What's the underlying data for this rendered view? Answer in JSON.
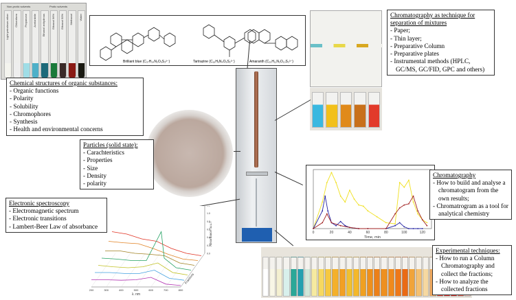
{
  "solvents_photo": {
    "header_left": "Non-protic solvents",
    "header_right": "Protic solvents",
    "tubes": [
      {
        "label": "Light petroleum ether",
        "color": "#f4f4ee"
      },
      {
        "label": "Chloroform",
        "color": "#eeeeee"
      },
      {
        "label": "Propanone",
        "color": "#9fdde6"
      },
      {
        "label": "Acetonitrile",
        "color": "#4fb0c8"
      },
      {
        "label": "Ethanol anhydrous",
        "color": "#1d6a7a"
      },
      {
        "label": "Ethanol 96%",
        "color": "#1a7a3a"
      },
      {
        "label": "Ethanol 50%",
        "color": "#3a2a28"
      },
      {
        "label": "Methanol",
        "color": "#8a1a14"
      },
      {
        "label": "Water",
        "color": "#1a1a12"
      }
    ]
  },
  "structures": [
    {
      "caption": "Brilliant blue (C₃₇H₃₄N₂O₉S₃²⁻)"
    },
    {
      "caption": "Tartrazine (C₁₆H₉N₄O₉S₂³⁻)"
    },
    {
      "caption": "Amaranth (C₂₀H₁₁N₂O₁₀S₃³⁻)"
    }
  ],
  "boxes": {
    "organic": {
      "title": "Chemical structures of organic substances:",
      "items": [
        "Organic functions",
        "Polarity",
        "Solubility",
        "Chromophores",
        "Synthesis",
        "Health and environmental concerns"
      ]
    },
    "particles": {
      "title": "Particles (solid state):",
      "items": [
        "Carachteristics",
        "Properties",
        "Size",
        "Density",
        "polarity"
      ]
    },
    "spectroscopy": {
      "title": "Electronic spectroscopy",
      "items": [
        "Electromagnetic spectrum",
        "Electronic transitions",
        "Lambert-Beer Law of absorbance"
      ]
    },
    "technique": {
      "title": "Chromatography as technique for separation of mixtures",
      "items": [
        "Paper;",
        "Thin layer;",
        "Preparative Column",
        "Preparative plates",
        "Instrumental methods (HPLC, GC/MS, GC/FID, GPC and others)"
      ]
    },
    "chromatography": {
      "title": "Chromatography",
      "items": [
        "How to build and analyse a chromatogram from the own results;",
        "Chromatrogram as a tool for analytical chemistry"
      ]
    },
    "experimental": {
      "title": "Experimental techniques:",
      "items": [
        "How to run a Column Chromatography and collect the fractions;",
        "How to analyze the collected fractions"
      ]
    }
  },
  "tlc_beakers": [
    {
      "color": "#3ab8e0"
    },
    {
      "color": "#f2c01a"
    },
    {
      "color": "#e08a1a"
    },
    {
      "color": "#c8701a"
    },
    {
      "color": "#e23a2a"
    }
  ],
  "fractions": {
    "tube_colors": [
      "#ffffff",
      "#f8f6e6",
      "#f4f0d0",
      "#d8f0ec",
      "#2aa898",
      "#24a0b0",
      "#d0e6d8",
      "#f6eaa0",
      "#f6d860",
      "#f6c840",
      "#f4b02a",
      "#f2a024",
      "#f0c030",
      "#f4b82a",
      "#f0a020",
      "#ee901c",
      "#ec8018",
      "#ee9020",
      "#f08a1c",
      "#ee7818",
      "#ea6a14",
      "#f0a43a",
      "#f4c070",
      "#f6d8a0",
      "#f0aa60",
      "#e63a2a",
      "#e02a22",
      "#d82820",
      "#e85a4a",
      "#f8c8c0"
    ]
  },
  "chart_data": [
    {
      "type": "line",
      "title": "",
      "xlabel": "Time, min",
      "ylabel": "",
      "xlim": [
        0,
        130
      ],
      "ylim": [
        0,
        1
      ],
      "x_ticks": [
        0,
        20,
        40,
        60,
        80,
        100,
        120
      ],
      "series": [
        {
          "color": "#f0e020",
          "x": [
            0,
            10,
            15,
            20,
            25,
            30,
            35,
            40,
            45,
            50,
            55,
            60,
            70,
            80,
            90,
            95,
            100,
            105,
            110,
            115,
            120,
            125
          ],
          "y": [
            0,
            0.45,
            0.78,
            0.95,
            0.78,
            0.55,
            0.45,
            0.65,
            0.5,
            0.4,
            0.38,
            0.3,
            0.2,
            0.1,
            0.08,
            0.78,
            0.7,
            0.82,
            0.45,
            0.25,
            0.15,
            0.1
          ]
        },
        {
          "color": "#2020a0",
          "x": [
            0,
            10,
            13,
            16,
            20,
            25,
            30,
            35,
            40,
            50,
            60,
            80,
            90,
            95,
            100,
            105,
            110,
            115,
            120
          ],
          "y": [
            0,
            0.3,
            0.55,
            0.3,
            0.1,
            0.05,
            0.12,
            0.05,
            0.02,
            0,
            0,
            0,
            0.05,
            0.1,
            0.03,
            0,
            0,
            0,
            0
          ]
        },
        {
          "color": "#a02020",
          "x": [
            0,
            10,
            15,
            20,
            30,
            40,
            50,
            60,
            80,
            90,
            95,
            100,
            105,
            110,
            115,
            120,
            125
          ],
          "y": [
            0,
            0.1,
            0.25,
            0.1,
            0.05,
            0.02,
            0,
            0,
            0,
            0.25,
            0.35,
            0.4,
            0.42,
            0.55,
            0.3,
            0.15,
            0.05
          ]
        }
      ]
    },
    {
      "type": "line",
      "title": "",
      "xlabel": "λ, nm",
      "ylabel": "Absorbance (a.u.)",
      "xlim": [
        200,
        800
      ],
      "ylim": [
        0,
        1
      ],
      "x_ticks": [
        200,
        300,
        400,
        500,
        600,
        700,
        800
      ],
      "y_ticks": [
        0.0,
        0.2,
        0.4,
        0.6,
        0.8,
        1.0,
        1.2
      ],
      "depth_label": "Fractions",
      "series": [
        {
          "color": "#e03020",
          "x": [
            200,
            300,
            400,
            500,
            600,
            700,
            800
          ],
          "y": [
            0.55,
            0.5,
            0.4,
            0.35,
            0.2,
            0.1,
            0.05
          ]
        },
        {
          "color": "#e08020",
          "x": [
            200,
            300,
            400,
            500,
            600,
            700,
            800
          ],
          "y": [
            0.45,
            0.42,
            0.4,
            0.3,
            0.18,
            0.08,
            0.05
          ]
        },
        {
          "color": "#a08020",
          "x": [
            200,
            300,
            400,
            500,
            600,
            700,
            800
          ],
          "y": [
            0.35,
            0.35,
            0.3,
            0.28,
            0.25,
            0.1,
            0.05
          ]
        },
        {
          "color": "#20a060",
          "x": [
            200,
            300,
            400,
            500,
            600,
            620,
            700,
            800
          ],
          "y": [
            0.3,
            0.28,
            0.25,
            0.25,
            0.85,
            0.3,
            0.1,
            0.05
          ]
        },
        {
          "color": "#c0c020",
          "x": [
            200,
            300,
            400,
            500,
            600,
            700,
            800
          ],
          "y": [
            0.25,
            0.22,
            0.2,
            0.22,
            0.3,
            0.1,
            0.05
          ]
        },
        {
          "color": "#40a0e0",
          "x": [
            200,
            300,
            400,
            500,
            600,
            700,
            800
          ],
          "y": [
            0.2,
            0.2,
            0.18,
            0.18,
            0.25,
            0.08,
            0.04
          ]
        },
        {
          "color": "#b030b0",
          "x": [
            200,
            300,
            400,
            500,
            600,
            700,
            800
          ],
          "y": [
            0.15,
            0.15,
            0.14,
            0.15,
            0.2,
            0.06,
            0.03
          ]
        }
      ]
    }
  ]
}
